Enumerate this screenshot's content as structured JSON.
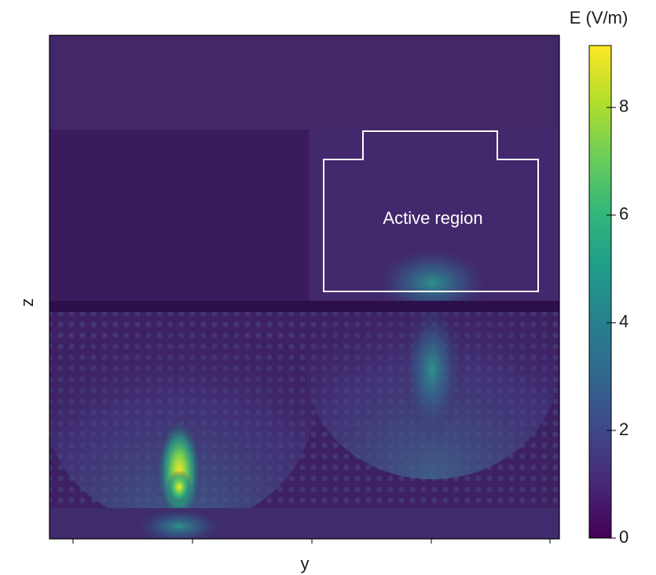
{
  "chart_data": {
    "type": "heatmap",
    "x_label": "y",
    "y_label": "z",
    "annotation": "Active region",
    "colorbar": {
      "label": "E (V/m)",
      "lim": [
        0,
        9.15
      ],
      "ticks": [
        0,
        2,
        4,
        6,
        8
      ],
      "colormap": "viridis"
    }
  }
}
